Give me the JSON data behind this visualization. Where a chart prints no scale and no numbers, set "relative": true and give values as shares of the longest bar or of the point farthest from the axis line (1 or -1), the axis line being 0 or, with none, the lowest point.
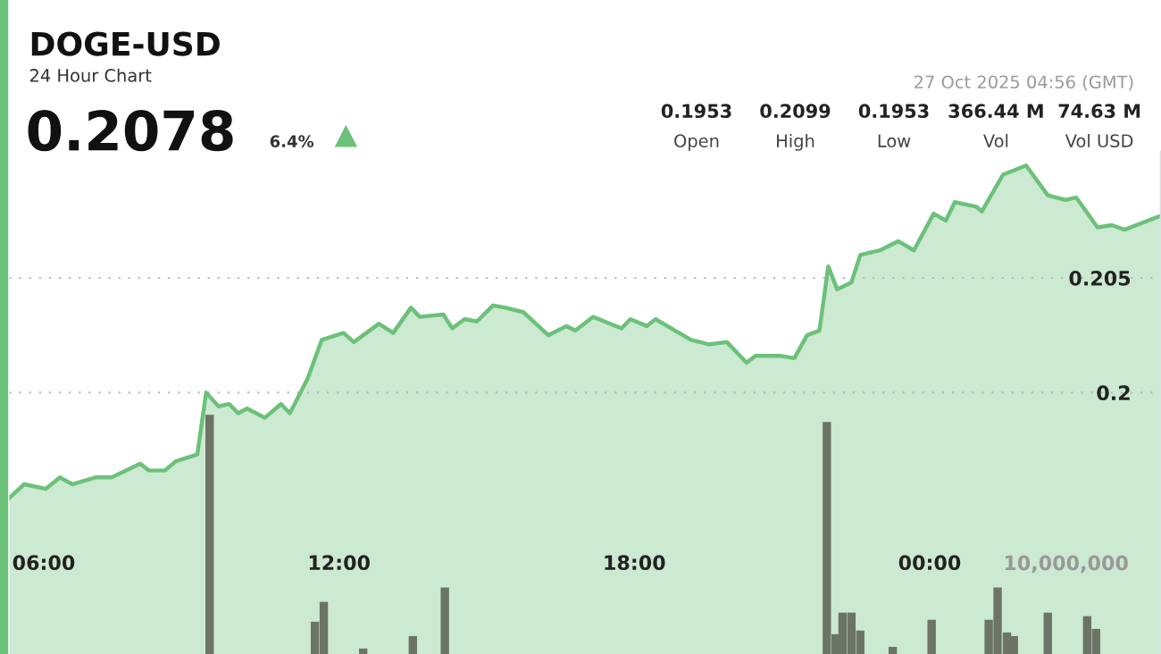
{
  "chart_data": [
    {
      "type": "area",
      "title": "DOGE-USD",
      "subtitle": "24 Hour Chart",
      "annotations": [
        "0.2078",
        "6.4%",
        "27 Oct 2025 04:56 (GMT)",
        "0.1953",
        "Open",
        "0.2099",
        "High",
        "0.1953",
        "Low",
        "366.44 M",
        "Vol",
        "74.63 M",
        "Vol USD"
      ],
      "xlim": [
        5.3,
        28.7
      ],
      "xticks": [
        {
          "value": 6,
          "label": "06:00"
        },
        {
          "value": 12,
          "label": "12:00"
        },
        {
          "value": 18,
          "label": "18:00"
        },
        {
          "value": 24,
          "label": "00:00"
        }
      ],
      "ylim": [
        0.1886,
        0.2105
      ],
      "yticks": [
        0.2,
        0.205
      ],
      "grid": "y",
      "series": [
        {
          "color": "#6cc17a",
          "x": [
            5.3,
            5.6,
            6.04,
            6.33,
            6.58,
            7.05,
            7.38,
            7.96,
            8.14,
            8.46,
            8.68,
            9.12,
            9.3,
            9.55,
            9.77,
            9.95,
            10.13,
            10.49,
            10.82,
            11.0,
            11.36,
            11.65,
            12.09,
            12.3,
            12.81,
            13.1,
            13.46,
            13.64,
            14.12,
            14.3,
            14.55,
            14.8,
            15.13,
            15.38,
            15.75,
            16.25,
            16.62,
            16.8,
            17.16,
            17.74,
            17.92,
            18.25,
            18.43,
            18.83,
            19.15,
            19.51,
            19.88,
            20.28,
            20.46,
            20.96,
            21.25,
            21.51,
            21.76,
            21.94,
            22.12,
            22.41,
            22.59,
            22.99,
            23.36,
            23.68,
            24.08,
            24.33,
            24.51,
            24.95,
            25.06,
            25.49,
            25.96,
            26.4,
            26.76,
            26.98,
            27.41,
            27.7,
            27.96,
            28.68
          ],
          "values": [
            0.1954,
            0.196,
            0.1958,
            0.1963,
            0.196,
            0.1963,
            0.1963,
            0.1969,
            0.1966,
            0.1966,
            0.197,
            0.1973,
            0.2,
            0.1994,
            0.1995,
            0.1991,
            0.1993,
            0.1989,
            0.1995,
            0.1991,
            0.2006,
            0.2023,
            0.2026,
            0.2022,
            0.203,
            0.2026,
            0.2037,
            0.2033,
            0.2034,
            0.2028,
            0.2032,
            0.2031,
            0.2038,
            0.2037,
            0.2035,
            0.2025,
            0.2029,
            0.2027,
            0.2033,
            0.2028,
            0.2032,
            0.2029,
            0.2032,
            0.2027,
            0.2023,
            0.2021,
            0.2022,
            0.2013,
            0.2016,
            0.2016,
            0.2015,
            0.2025,
            0.2027,
            0.2055,
            0.2045,
            0.2048,
            0.206,
            0.2062,
            0.2066,
            0.2062,
            0.2078,
            0.2075,
            0.2083,
            0.2081,
            0.2079,
            0.2095,
            0.2099,
            0.2086,
            0.2084,
            0.2085,
            0.2072,
            0.2073,
            0.2071,
            0.2077
          ]
        }
      ]
    },
    {
      "type": "bar",
      "relative": true,
      "annotations": [
        "10,000,000"
      ],
      "xlim": [
        5.3,
        28.7
      ],
      "series": [
        {
          "color": "#6b7466",
          "x": [
            9.37,
            11.51,
            11.69,
            12.49,
            13.5,
            14.15,
            21.91,
            22.09,
            22.23,
            22.41,
            22.59,
            23.25,
            24.04,
            25.2,
            25.38,
            25.57,
            25.71,
            26.4,
            27.2,
            27.38
          ],
          "values": [
            1,
            0.135,
            0.218,
            0.023,
            0.075,
            0.278,
            0.97,
            0.083,
            0.173,
            0.173,
            0.098,
            0.03,
            0.143,
            0.143,
            0.278,
            0.09,
            0.075,
            0.173,
            0.158,
            0.105
          ]
        }
      ]
    }
  ]
}
